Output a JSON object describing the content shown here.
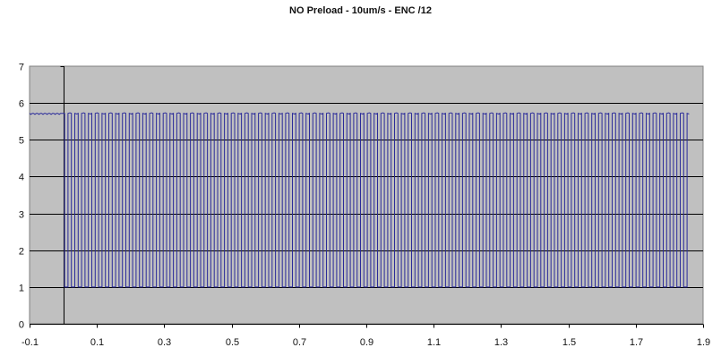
{
  "chart_data": {
    "type": "line",
    "title": "NO Preload - 10um/s - ENC /12",
    "xlabel": "",
    "ylabel": "",
    "xlim": [
      -0.1,
      1.9
    ],
    "ylim": [
      0,
      7
    ],
    "x_ticks": [
      -0.1,
      0.1,
      0.3,
      0.5,
      0.7,
      0.9,
      1.1,
      1.3,
      1.5,
      1.7,
      1.9
    ],
    "x_tick_labels": [
      "-0.1",
      "0.1",
      "0.3",
      "0.5",
      "0.7",
      "0.9",
      "1.1",
      "1.3",
      "1.5",
      "1.7",
      "1.9"
    ],
    "y_ticks": [
      0,
      1,
      2,
      3,
      4,
      5,
      6,
      7
    ],
    "y_tick_labels": [
      "0",
      "1",
      "2",
      "3",
      "4",
      "5",
      "6",
      "7"
    ],
    "grid": {
      "horizontal": true,
      "vertical": false
    },
    "legend": "none",
    "plot_background": "#c0c0c0",
    "series": [
      {
        "color": "#2b2b9a",
        "signal": "square-wave",
        "high_value": 5.72,
        "low_value": 1.0,
        "x_start": -0.1,
        "first_edge": 0.0,
        "x_end": 1.86,
        "period": 0.0202,
        "duty_cycle": 0.5,
        "cycles": 92
      }
    ]
  }
}
